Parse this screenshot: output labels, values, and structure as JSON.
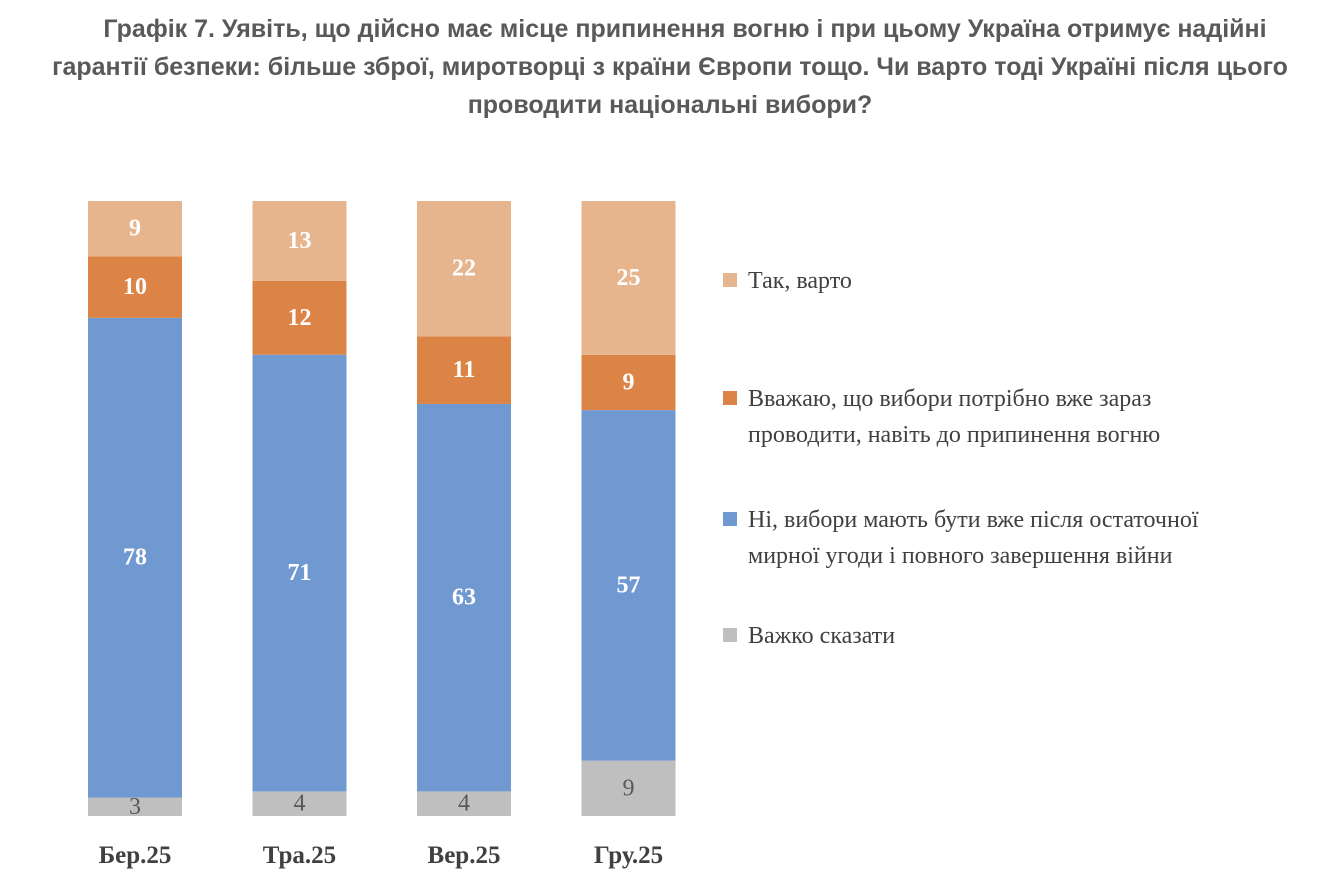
{
  "chart_data": {
    "type": "bar",
    "stacked": true,
    "title": "Графік 7. Уявіть, що дійсно має місце припинення вогню і при цьому Україна отримує надійні гарантії безпеки: більше зброї, миротворці з країни Європи тощо. Чи варто тоді Україні після цього проводити національні вибори?",
    "categories": [
      "Бер.25",
      "Тра.25",
      "Вер.25",
      "Гру.25"
    ],
    "series": [
      {
        "name": "Важко сказати",
        "color": "#bfbfbf",
        "values": [
          3,
          4,
          4,
          9
        ]
      },
      {
        "name": "Ні, вибори мають бути вже після остаточної мирної угоди і повного завершення війни",
        "color": "#7099d2",
        "values": [
          78,
          71,
          63,
          57
        ]
      },
      {
        "name": "Вважаю, що вибори потрібно вже зараз проводити, навіть до припинення вогню",
        "color": "#dc8445",
        "values": [
          10,
          12,
          11,
          9
        ]
      },
      {
        "name": "Так, варто",
        "color": "#e6b58e",
        "values": [
          9,
          13,
          22,
          25
        ]
      }
    ],
    "legend_order": [
      3,
      2,
      1,
      0
    ],
    "legend_placement": "right",
    "ylim": [
      0,
      100
    ],
    "grid": false,
    "data_labels": true
  }
}
